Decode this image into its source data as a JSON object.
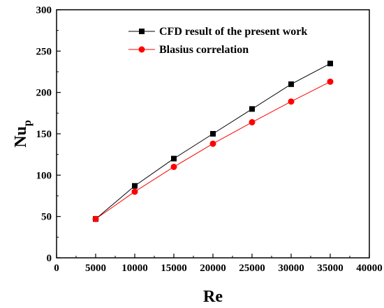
{
  "chart_data": {
    "type": "line",
    "xlabel": "Re",
    "ylabel": "Nu",
    "ylabel_sub": "p",
    "xlim": [
      0,
      40000
    ],
    "ylim": [
      0,
      300
    ],
    "xticks": [
      0,
      5000,
      10000,
      15000,
      20000,
      25000,
      30000,
      35000,
      40000
    ],
    "yticks": [
      0,
      50,
      100,
      150,
      200,
      250,
      300
    ],
    "grid": false,
    "legend_position": "top-right",
    "series": [
      {
        "name": "CFD result of the present work",
        "color": "#000000",
        "marker": "square",
        "x": [
          5000,
          10000,
          15000,
          20000,
          25000,
          30000,
          35000
        ],
        "y": [
          47,
          87,
          120,
          150,
          180,
          210,
          235
        ]
      },
      {
        "name": "Blasius correlation",
        "color": "#ff0000",
        "marker": "circle",
        "x": [
          5000,
          10000,
          15000,
          20000,
          25000,
          30000,
          35000
        ],
        "y": [
          47,
          80,
          110,
          138,
          164,
          189,
          213
        ]
      }
    ]
  }
}
